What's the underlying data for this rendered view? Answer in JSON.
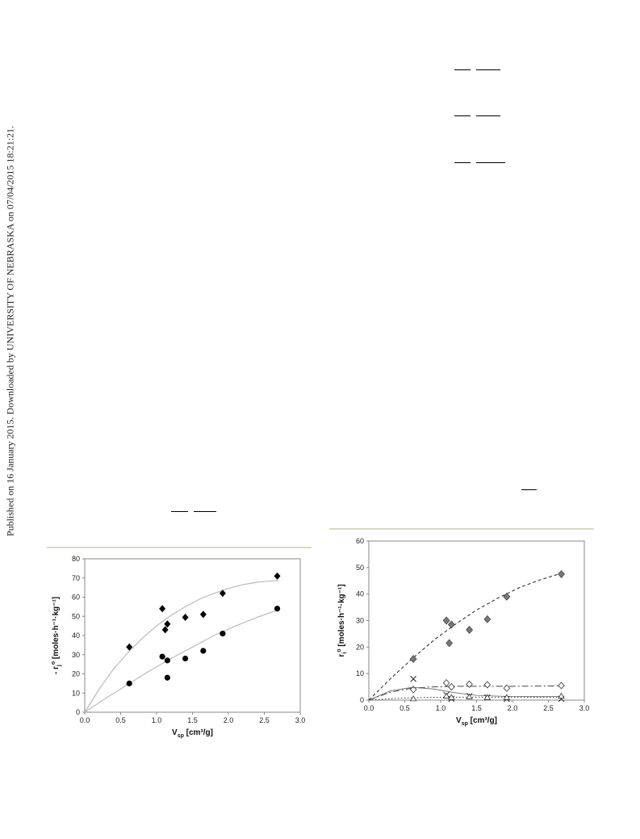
{
  "side_note": "Published on 16 January 2015. Downloaded by UNIVERSITY OF NEBRASKA on 07/04/2015 18:21:21.",
  "chart_data": [
    {
      "type": "scatter",
      "xlabel": "V",
      "xlabel_sub": "sp",
      "xlabel_unit": " [cm³/g]",
      "ylabel": "- r",
      "ylabel_sub": "j",
      "ylabel_sup": "o",
      "ylabel_unit": " [moles·h⁻¹·kg⁻¹]",
      "xlim": [
        0,
        3
      ],
      "ylim": [
        0,
        80
      ],
      "xticks": [
        "0.0",
        "0.5",
        "1.0",
        "1.5",
        "2.0",
        "2.5",
        "3.0"
      ],
      "yticks": [
        "0",
        "10",
        "20",
        "30",
        "40",
        "50",
        "60",
        "70",
        "80"
      ],
      "grid": false,
      "series": [
        {
          "marker": "diamond-filled",
          "points": [
            [
              0.62,
              34
            ],
            [
              1.08,
              54
            ],
            [
              1.12,
              43
            ],
            [
              1.15,
              46
            ],
            [
              1.4,
              49.5
            ],
            [
              1.65,
              51
            ],
            [
              1.92,
              62
            ],
            [
              2.68,
              71
            ]
          ],
          "fit": [
            [
              0,
              0
            ],
            [
              0.2,
              12
            ],
            [
              0.4,
              22.5
            ],
            [
              0.6,
              31
            ],
            [
              0.8,
              38.5
            ],
            [
              1.0,
              45
            ],
            [
              1.2,
              50.5
            ],
            [
              1.4,
              55
            ],
            [
              1.6,
              59
            ],
            [
              1.8,
              62
            ],
            [
              2.0,
              64.5
            ],
            [
              2.2,
              66.5
            ],
            [
              2.4,
              67.8
            ],
            [
              2.6,
              68.5
            ],
            [
              2.7,
              68.6
            ]
          ]
        },
        {
          "marker": "circle-filled",
          "points": [
            [
              0.62,
              15
            ],
            [
              1.08,
              29
            ],
            [
              1.15,
              27
            ],
            [
              1.15,
              18
            ],
            [
              1.4,
              28
            ],
            [
              1.65,
              32
            ],
            [
              1.92,
              41
            ],
            [
              2.68,
              54
            ]
          ],
          "fit": [
            [
              0,
              0
            ],
            [
              0.3,
              7.5
            ],
            [
              0.6,
              14.5
            ],
            [
              0.9,
              21.5
            ],
            [
              1.2,
              28
            ],
            [
              1.5,
              34
            ],
            [
              1.8,
              40
            ],
            [
              2.1,
              45
            ],
            [
              2.4,
              49.5
            ],
            [
              2.7,
              53.5
            ]
          ]
        }
      ]
    },
    {
      "type": "scatter",
      "xlabel": "V",
      "xlabel_sub": "sp",
      "xlabel_unit": " [cm³/g]",
      "ylabel": "r",
      "ylabel_sub": "i",
      "ylabel_sup": "o",
      "ylabel_unit": " [moles·h⁻¹·kg⁻¹]",
      "xlim": [
        0,
        3
      ],
      "ylim": [
        0,
        60
      ],
      "xticks": [
        "0.0",
        "0.5",
        "1.0",
        "1.5",
        "2.0",
        "2.5",
        "3.0"
      ],
      "yticks": [
        "0",
        "10",
        "20",
        "30",
        "40",
        "50",
        "60"
      ],
      "grid": false,
      "series": [
        {
          "marker": "diamond-gray",
          "line": "dashed",
          "points": [
            [
              0.62,
              15.5
            ],
            [
              1.08,
              30
            ],
            [
              1.12,
              21.5
            ],
            [
              1.15,
              28.5
            ],
            [
              1.4,
              26.5
            ],
            [
              1.65,
              30.5
            ],
            [
              1.92,
              39
            ],
            [
              2.68,
              47.5
            ]
          ],
          "fit": [
            [
              0,
              0
            ],
            [
              0.3,
              8
            ],
            [
              0.6,
              15.5
            ],
            [
              0.9,
              22.5
            ],
            [
              1.2,
              28.5
            ],
            [
              1.5,
              34
            ],
            [
              1.8,
              38.5
            ],
            [
              2.1,
              42.5
            ],
            [
              2.4,
              45.5
            ],
            [
              2.7,
              48
            ]
          ]
        },
        {
          "marker": "diamond-open",
          "line": "dashdot",
          "points": [
            [
              0.62,
              4
            ],
            [
              1.08,
              6.5
            ],
            [
              1.15,
              5
            ],
            [
              1.4,
              6
            ],
            [
              1.65,
              5.8
            ],
            [
              1.92,
              4.5
            ],
            [
              2.68,
              5.5
            ]
          ],
          "fit": [
            [
              0,
              0
            ],
            [
              0.3,
              3
            ],
            [
              0.6,
              4.5
            ],
            [
              0.9,
              5
            ],
            [
              1.2,
              5.2
            ],
            [
              1.6,
              5.2
            ],
            [
              2.0,
              5.2
            ],
            [
              2.4,
              5.3
            ],
            [
              2.7,
              5.4
            ]
          ]
        },
        {
          "marker": "x",
          "line": "thin-solid",
          "points": [
            [
              0.62,
              8
            ],
            [
              1.08,
              2
            ],
            [
              1.15,
              0.5
            ],
            [
              1.4,
              1.5
            ],
            [
              1.65,
              1
            ],
            [
              1.92,
              0.5
            ],
            [
              2.68,
              0.5
            ]
          ],
          "fit": [
            [
              0,
              0
            ],
            [
              0.3,
              3.5
            ],
            [
              0.6,
              4.8
            ],
            [
              0.9,
              4.2
            ],
            [
              1.2,
              2.8
            ],
            [
              1.5,
              1.8
            ],
            [
              1.9,
              1.4
            ],
            [
              2.3,
              1.3
            ],
            [
              2.7,
              1.3
            ]
          ]
        },
        {
          "marker": "triangle-open",
          "line": "dotted",
          "points": [
            [
              0.62,
              0.5
            ],
            [
              1.08,
              1.5
            ],
            [
              1.15,
              1.0
            ],
            [
              1.4,
              1.2
            ],
            [
              1.65,
              1.0
            ],
            [
              1.92,
              1.0
            ],
            [
              2.68,
              1.5
            ]
          ],
          "fit": [
            [
              0,
              0
            ],
            [
              0.4,
              0.7
            ],
            [
              0.8,
              1.0
            ],
            [
              1.2,
              1.1
            ],
            [
              1.6,
              1.1
            ],
            [
              2.0,
              1.1
            ],
            [
              2.4,
              1.1
            ],
            [
              2.7,
              1.1
            ]
          ]
        }
      ]
    }
  ]
}
